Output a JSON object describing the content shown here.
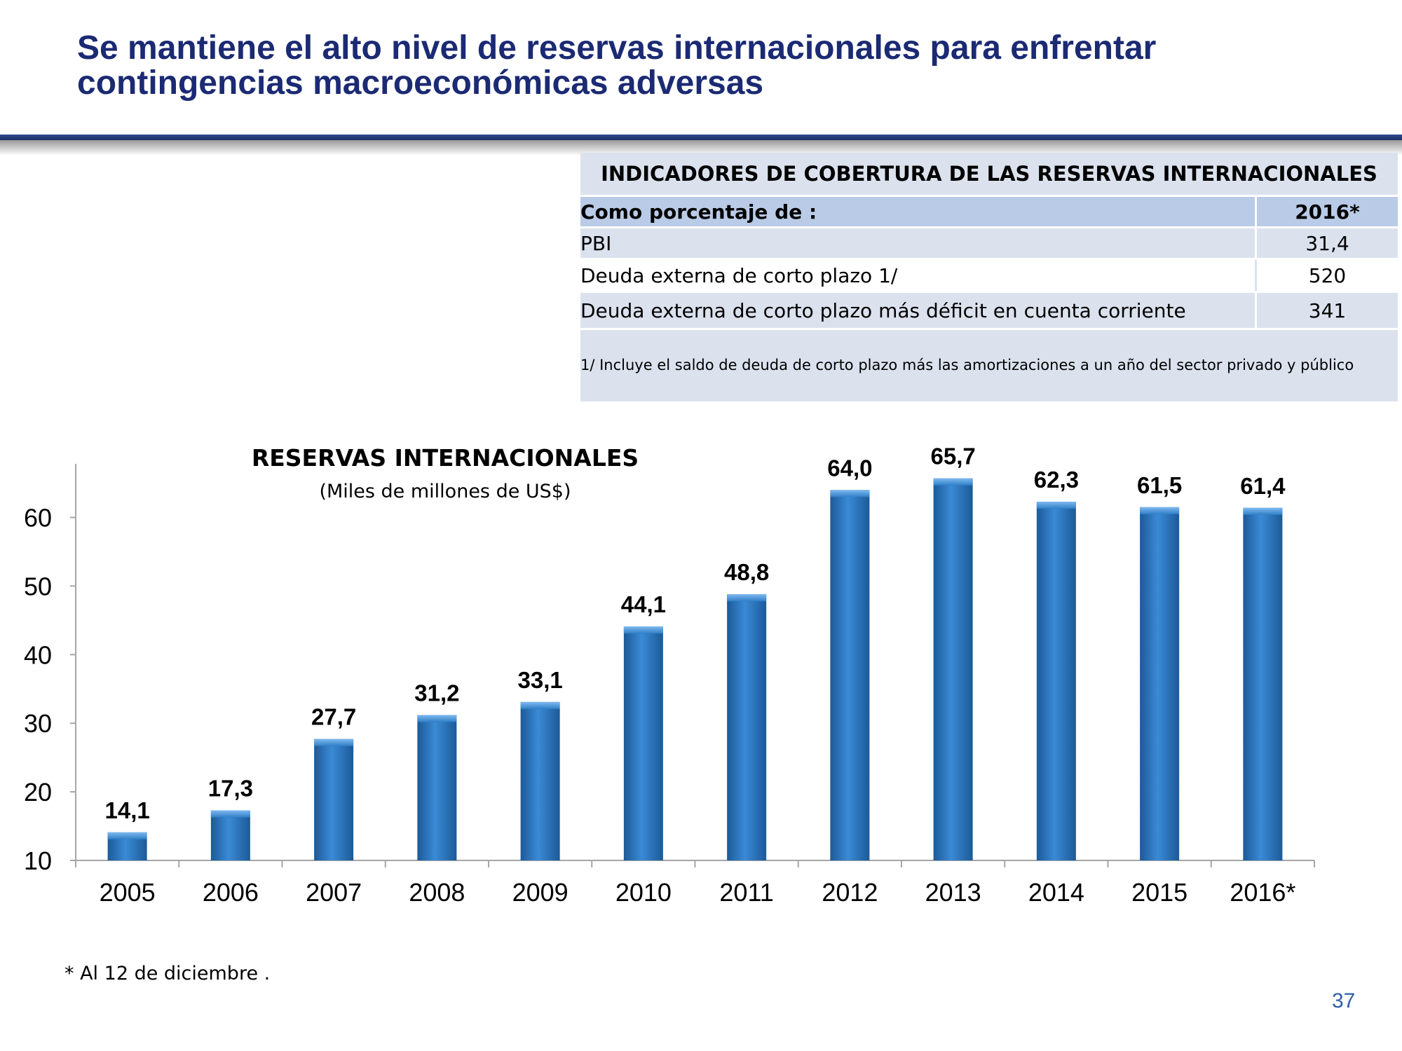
{
  "slide": {
    "title_line1": "Se mantiene el alto nivel de reservas internacionales para enfrentar",
    "title_line2": "contingencias macroeconómicas adversas",
    "footnote": "* Al 12 de diciembre .",
    "page_number": "37"
  },
  "indicators": {
    "title": "INDICADORES DE COBERTURA DE LAS RESERVAS INTERNACIONALES",
    "header_label": "Como porcentaje de :",
    "header_year": "2016*",
    "rows": [
      {
        "label": "PBI",
        "value": "31,4"
      },
      {
        "label": "Deuda externa de corto plazo 1/",
        "value": "520"
      },
      {
        "label": "Deuda externa de corto plazo más déficit en cuenta corriente",
        "value": "341"
      }
    ],
    "note": "1/ Incluye el saldo de deuda de corto plazo más las amortizaciones a un año del sector privado y público"
  },
  "chart_data": {
    "type": "bar",
    "title": "RESERVAS INTERNACIONALES",
    "subtitle": "(Miles de millones de US$)",
    "categories": [
      "2005",
      "2006",
      "2007",
      "2008",
      "2009",
      "2010",
      "2011",
      "2012",
      "2013",
      "2014",
      "2015",
      "2016*"
    ],
    "values": [
      14.1,
      17.3,
      27.7,
      31.2,
      33.1,
      44.1,
      48.8,
      64.0,
      65.7,
      62.3,
      61.5,
      61.4
    ],
    "value_labels": [
      "14,1",
      "17,3",
      "27,7",
      "31,2",
      "33,1",
      "44,1",
      "48,8",
      "64,0",
      "65,7",
      "62,3",
      "61,5",
      "61,4"
    ],
    "ylim": [
      10,
      68
    ],
    "yticks": [
      10,
      20,
      30,
      40,
      50,
      60
    ],
    "xlabel": "",
    "ylabel": "",
    "grid": false,
    "bar_color": "#2f7fc6"
  }
}
